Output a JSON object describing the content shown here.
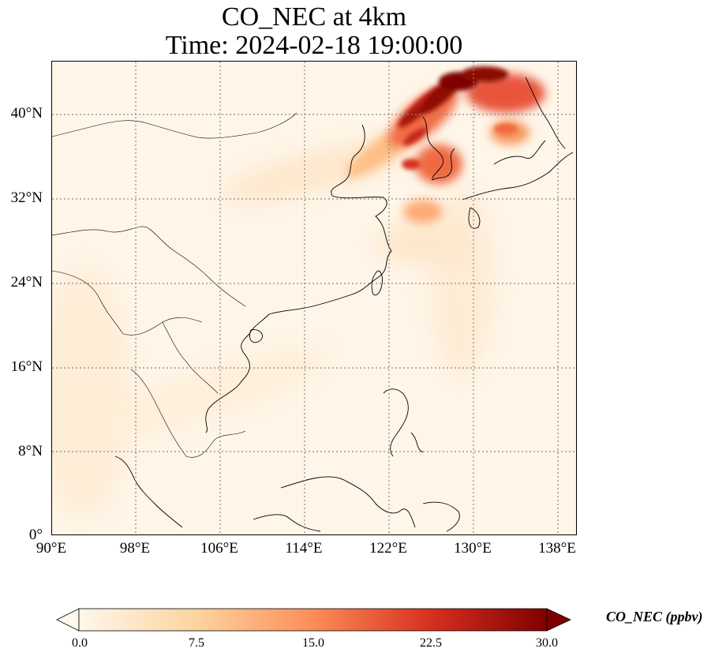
{
  "title": {
    "line1": "CO_NEC at 4km",
    "line2": "Time: 2024-02-18 19:00:00"
  },
  "map": {
    "lon_range": [
      90,
      139.8
    ],
    "lat_range": [
      0,
      45
    ],
    "lat_ticks": [
      "40°N",
      "32°N",
      "24°N",
      "16°N",
      "8°N",
      "0°"
    ],
    "lon_ticks": [
      "90°E",
      "98°E",
      "106°E",
      "114°E",
      "122°E",
      "130°E",
      "138°E"
    ],
    "gridlines": "dotted",
    "coastlines": true,
    "borders": true
  },
  "colorbar": {
    "label": "CO_NEC (ppbv)",
    "ticks": [
      "0.0",
      "7.5",
      "15.0",
      "22.5",
      "30.0"
    ],
    "range": [
      0,
      30
    ],
    "colormap": "OrRd",
    "extend": "both",
    "colors": [
      "#fff7ec",
      "#fdd49e",
      "#fc8d59",
      "#d7301f",
      "#7f0000"
    ]
  }
}
